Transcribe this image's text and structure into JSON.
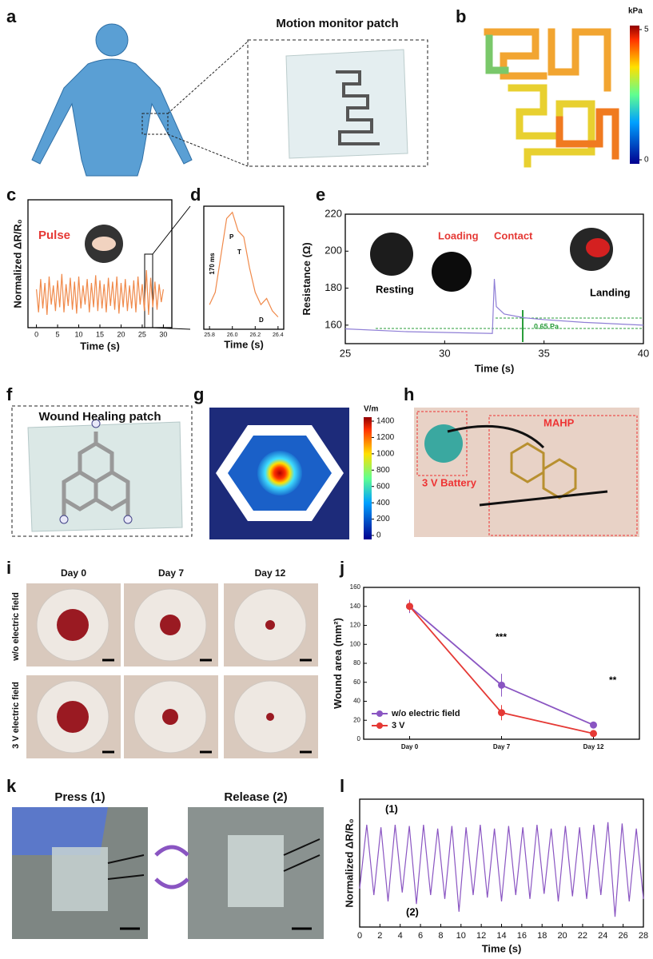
{
  "figure": {
    "panel_labels": [
      "a",
      "b",
      "c",
      "d",
      "e",
      "f",
      "g",
      "h",
      "i",
      "j",
      "k",
      "l"
    ],
    "a": {
      "title": "Motion monitor patch"
    },
    "b": {
      "colorbar": {
        "unit": "kPa",
        "ticks": [
          0,
          5
        ]
      }
    },
    "f": {
      "title": "Wound Healing patch"
    },
    "g": {
      "colorbar": {
        "unit": "V/m",
        "ticks": [
          0,
          200,
          400,
          600,
          800,
          1000,
          1200,
          1400
        ]
      }
    },
    "h": {
      "labels": [
        "MAHP",
        "3 V Battery"
      ]
    },
    "i": {
      "columns": [
        "Day 0",
        "Day 7",
        "Day 12"
      ],
      "rows": [
        "w/o electric field",
        "3 V electric field"
      ]
    },
    "k": {
      "captions": [
        "Press (1)",
        "Release (2)"
      ]
    }
  },
  "chart_data": [
    {
      "type": "line",
      "xlabel": "Time (s)",
      "ylabel": "Normalized ΔR/R₀",
      "annotations": [
        "Pulse"
      ],
      "x": [
        0,
        0.5,
        1,
        1.5,
        2,
        2.5,
        3,
        3.5,
        4,
        4.5,
        5,
        5.5,
        6,
        6.5,
        7,
        7.5,
        8,
        8.5,
        9,
        9.5,
        10,
        10.5,
        11,
        11.5,
        12,
        12.5,
        13,
        13.5,
        14,
        14.5,
        15,
        15.5,
        16,
        16.5,
        17,
        17.5,
        18,
        18.5,
        19,
        19.5,
        20,
        20.5,
        21,
        21.5,
        22,
        22.5,
        23,
        23.5,
        24,
        24.5,
        25,
        25.5,
        26,
        26.5,
        27,
        27.5,
        28,
        28.5,
        29,
        29.5,
        30
      ],
      "series": [
        {
          "color": "#f08a4b",
          "values": [
            0.3,
            0.12,
            0.38,
            0.15,
            0.35,
            0.1,
            0.4,
            0.18,
            0.33,
            0.13,
            0.37,
            0.16,
            0.42,
            0.12,
            0.34,
            0.17,
            0.39,
            0.14,
            0.36,
            0.11,
            0.4,
            0.15,
            0.33,
            0.18,
            0.38,
            0.12,
            0.35,
            0.16,
            0.41,
            0.13,
            0.37,
            0.15,
            0.34,
            0.12,
            0.39,
            0.17,
            0.36,
            0.14,
            0.4,
            0.11,
            0.35,
            0.16,
            0.38,
            0.13,
            0.33,
            0.15,
            0.37,
            0.12,
            0.4,
            0.18,
            0.34,
            0.13,
            0.45,
            0.1,
            0.39,
            0.16,
            0.36,
            0.14,
            0.34,
            0.2,
            0.3
          ]
        }
      ],
      "xlim": [
        -2,
        32
      ],
      "ylim": [
        0,
        1
      ],
      "xticks": [
        0,
        5,
        10,
        15,
        20,
        25,
        30
      ]
    },
    {
      "type": "line",
      "xlabel": "Time (s)",
      "annotations": [
        "P",
        "T",
        "D",
        "170 ms"
      ],
      "x": [
        25.8,
        25.85,
        25.9,
        25.95,
        26.0,
        26.05,
        26.1,
        26.15,
        26.2,
        26.25,
        26.3,
        26.35,
        26.4
      ],
      "series": [
        {
          "color": "#f08a4b",
          "values": [
            0.2,
            0.3,
            0.6,
            0.9,
            0.95,
            0.8,
            0.75,
            0.5,
            0.3,
            0.2,
            0.25,
            0.15,
            0.1
          ]
        }
      ],
      "xlim": [
        25.75,
        26.45
      ],
      "ylim": [
        0,
        1
      ],
      "xticks": [
        25.8,
        {
          "value": 26,
          "label": "26.0"
        },
        26.2,
        26.4
      ]
    },
    {
      "type": "line",
      "xlabel": "Time (s)",
      "ylabel": "Resistance (Ω)",
      "annotations": [
        "Resting",
        "Loading",
        "Contact",
        "Landing",
        "0.65 Pa"
      ],
      "x": [
        25,
        28,
        32.4,
        32.5,
        32.6,
        33,
        34,
        35,
        37,
        40
      ],
      "series": [
        {
          "color": "#8f7fd6",
          "values": [
            158,
            156.5,
            155.5,
            185,
            170,
            166,
            164,
            163,
            161.5,
            160
          ]
        }
      ],
      "xlim": [
        25,
        40
      ],
      "ylim": [
        150,
        220
      ],
      "xticks": [
        25,
        30,
        35,
        40
      ],
      "yticks": [
        160,
        180,
        200,
        220
      ]
    },
    {
      "type": "line",
      "ylabel": "Wound area (mm²)",
      "annotations": [
        "***",
        "**"
      ],
      "categories": [
        "Day 0",
        "Day 7",
        "Day 12"
      ],
      "series": [
        {
          "name": "w/o electric field",
          "color": "#8a55c2",
          "values": [
            140,
            57,
            15
          ],
          "errors": [
            7,
            12,
            3
          ]
        },
        {
          "name": "3 V",
          "color": "#e53935",
          "values": [
            140,
            28,
            6
          ],
          "errors": [
            5,
            8,
            3
          ]
        }
      ],
      "ylim": [
        0,
        160
      ],
      "yticks": [
        0,
        20,
        40,
        60,
        80,
        100,
        120,
        140,
        160
      ]
    },
    {
      "type": "line",
      "xlabel": "Time (s)",
      "ylabel": "Normalized ΔR/R₀",
      "annotations": [
        "(1)",
        "(2)"
      ],
      "x": [
        0,
        0.7,
        1.4,
        2.1,
        2.8,
        3.5,
        4.2,
        4.9,
        5.6,
        6.3,
        7,
        7.7,
        8.4,
        9.1,
        9.8,
        10.5,
        11.2,
        11.9,
        12.6,
        13.3,
        14,
        14.7,
        15.4,
        16.1,
        16.8,
        17.5,
        18.2,
        18.9,
        19.6,
        20.3,
        21,
        21.7,
        22.4,
        23.1,
        23.8,
        24.5,
        25.2,
        25.9,
        26.6,
        27.3,
        28
      ],
      "series": [
        {
          "color": "#8a55c2",
          "values": [
            0.3,
            0.8,
            0.25,
            0.78,
            0.2,
            0.8,
            0.27,
            0.79,
            0.18,
            0.8,
            0.25,
            0.77,
            0.22,
            0.79,
            0.12,
            0.78,
            0.25,
            0.8,
            0.23,
            0.77,
            0.2,
            0.79,
            0.25,
            0.78,
            0.22,
            0.8,
            0.26,
            0.77,
            0.2,
            0.79,
            0.24,
            0.78,
            0.22,
            0.8,
            0.25,
            0.82,
            0.08,
            0.81,
            0.2,
            0.77,
            0.22
          ]
        }
      ],
      "xlim": [
        0,
        28
      ],
      "ylim": [
        0,
        1
      ],
      "xticks": [
        0,
        2,
        4,
        6,
        8,
        10,
        12,
        14,
        16,
        18,
        20,
        22,
        24,
        26,
        28
      ]
    }
  ]
}
